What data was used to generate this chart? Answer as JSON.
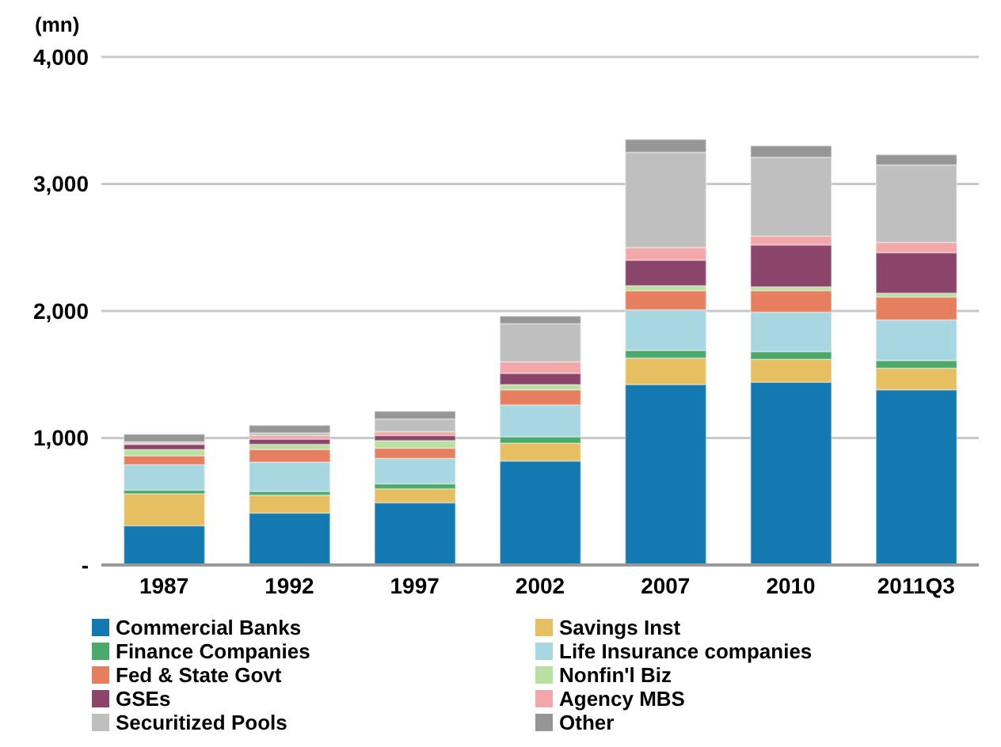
{
  "chart_data": {
    "type": "bar",
    "stacked": true,
    "ylabel": "(mn)",
    "categories": [
      "1987",
      "1992",
      "1997",
      "2002",
      "2007",
      "2010",
      "2011Q3"
    ],
    "series": [
      {
        "name": "Commercial Banks",
        "color": "#1479b1",
        "values": [
          310,
          410,
          490,
          820,
          1420,
          1440,
          1380
        ]
      },
      {
        "name": "Savings Inst",
        "color": "#e5bf62",
        "values": [
          250,
          140,
          110,
          140,
          210,
          180,
          170
        ]
      },
      {
        "name": "Finance Companies",
        "color": "#4aa96b",
        "values": [
          30,
          30,
          40,
          50,
          60,
          60,
          60
        ]
      },
      {
        "name": "Life Insurance companies",
        "color": "#a8d6e1",
        "values": [
          200,
          230,
          200,
          250,
          320,
          310,
          320
        ]
      },
      {
        "name": "Fed & State Govt",
        "color": "#e67f5f",
        "values": [
          70,
          100,
          80,
          120,
          150,
          170,
          180
        ]
      },
      {
        "name": "Nonfin'l Biz",
        "color": "#b9e0a0",
        "values": [
          50,
          40,
          60,
          40,
          40,
          30,
          30
        ]
      },
      {
        "name": "GSEs",
        "color": "#8c456a",
        "values": [
          40,
          40,
          40,
          90,
          200,
          330,
          320
        ]
      },
      {
        "name": "Agency MBS",
        "color": "#f2a7a9",
        "values": [
          10,
          30,
          30,
          90,
          100,
          70,
          80
        ]
      },
      {
        "name": "Securitized Pools",
        "color": "#bfbfbf",
        "values": [
          10,
          20,
          100,
          300,
          750,
          620,
          610
        ]
      },
      {
        "name": "Other",
        "color": "#969696",
        "values": [
          60,
          60,
          60,
          60,
          100,
          90,
          80
        ]
      }
    ],
    "ylim": [
      0,
      4000
    ],
    "yticks": [
      {
        "value": 0,
        "label": "-"
      },
      {
        "value": 1000,
        "label": "1,000"
      },
      {
        "value": 2000,
        "label": "2,000"
      },
      {
        "value": 3000,
        "label": "3,000"
      },
      {
        "value": 4000,
        "label": "4,000"
      }
    ],
    "grid": "y",
    "legend": "bottom"
  }
}
